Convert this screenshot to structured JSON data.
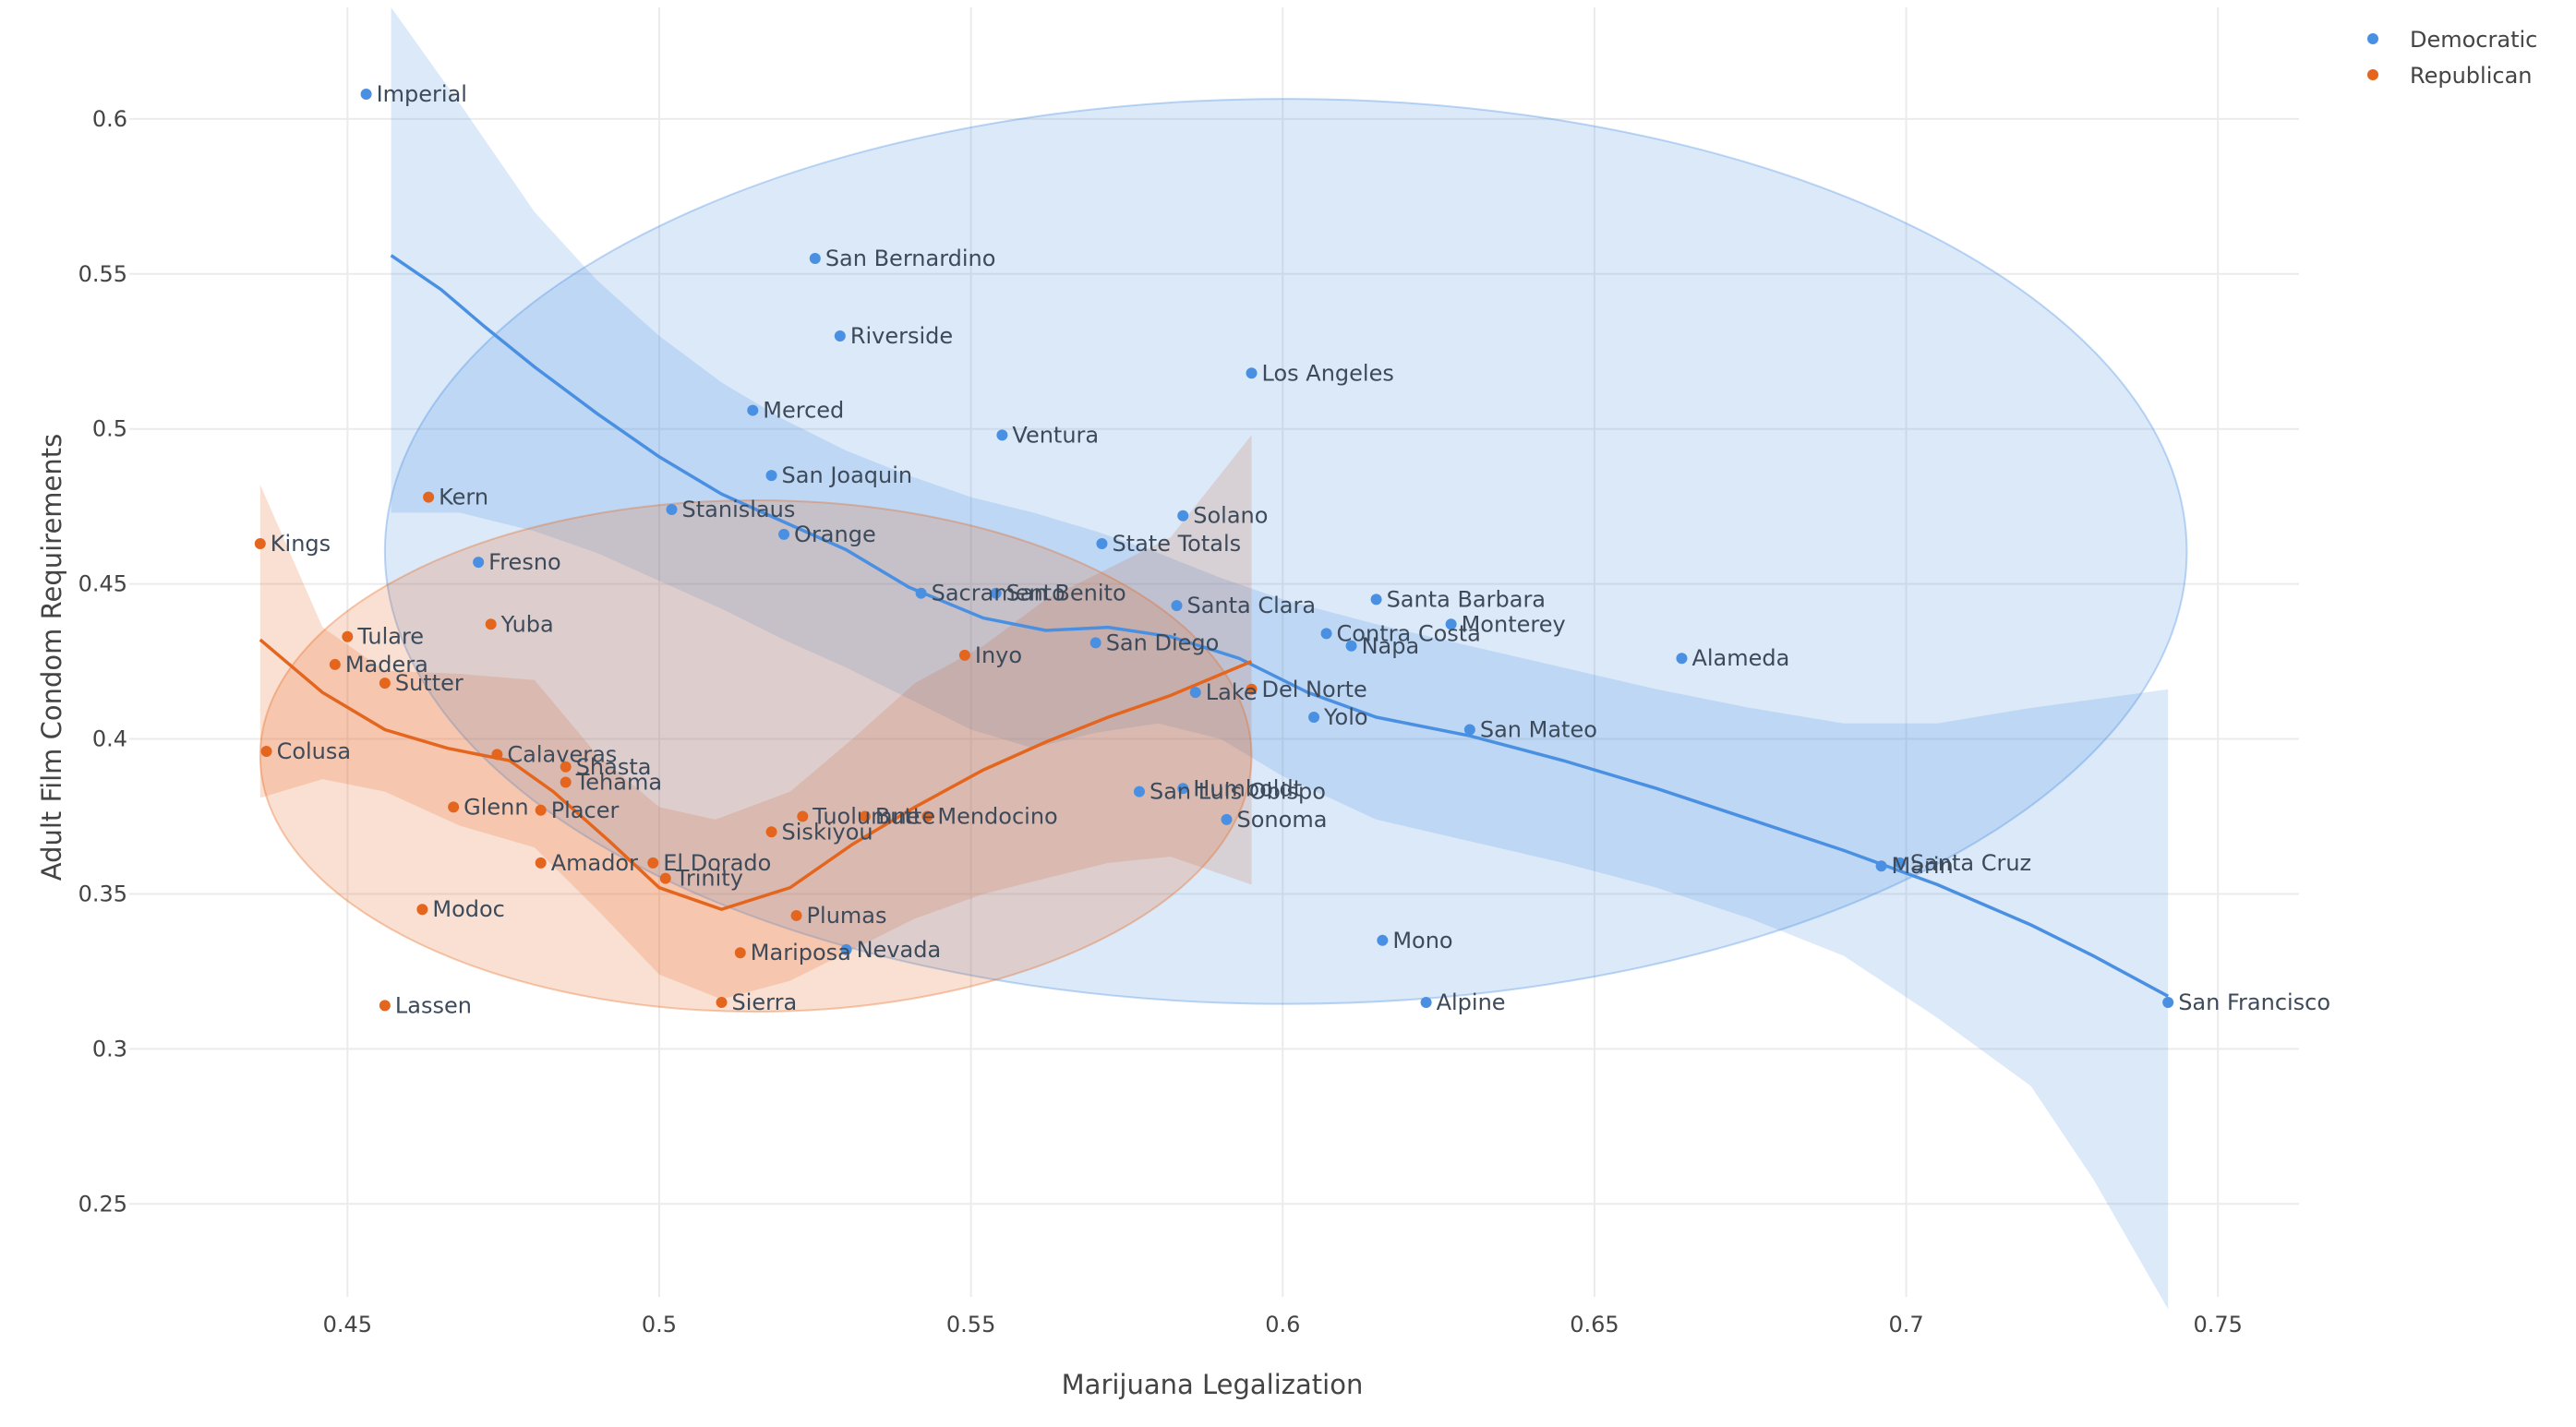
{
  "chart_data": {
    "type": "scatter",
    "title": "",
    "xlabel": "Marijuana Legalization",
    "ylabel": "Adult Film Condom Requirements",
    "xlim": [
      0.415,
      0.763
    ],
    "ylim": [
      0.22,
      0.636
    ],
    "x_ticks": [
      0.45,
      0.5,
      0.55,
      0.6,
      0.65,
      0.7,
      0.75
    ],
    "x_tick_labels": [
      "0.45",
      "0.5",
      "0.55",
      "0.6",
      "0.65",
      "0.7",
      "0.75"
    ],
    "y_ticks": [
      0.25,
      0.3,
      0.35,
      0.4,
      0.45,
      0.5,
      0.55,
      0.6
    ],
    "y_tick_labels": [
      "0.25",
      "0.3",
      "0.35",
      "0.4",
      "0.45",
      "0.5",
      "0.55",
      "0.6"
    ],
    "grid": true,
    "legend_position": "top-right",
    "series": [
      {
        "name": "Democratic",
        "color": "#4a90e2",
        "points": [
          {
            "label": "Imperial",
            "x": 0.453,
            "y": 0.608
          },
          {
            "label": "San Bernardino",
            "x": 0.525,
            "y": 0.555
          },
          {
            "label": "Riverside",
            "x": 0.529,
            "y": 0.53
          },
          {
            "label": "Los Angeles",
            "x": 0.595,
            "y": 0.518
          },
          {
            "label": "Merced",
            "x": 0.515,
            "y": 0.506
          },
          {
            "label": "Ventura",
            "x": 0.555,
            "y": 0.498
          },
          {
            "label": "San Joaquin",
            "x": 0.518,
            "y": 0.485
          },
          {
            "label": "Solano",
            "x": 0.584,
            "y": 0.472
          },
          {
            "label": "Stanislaus",
            "x": 0.502,
            "y": 0.474
          },
          {
            "label": "Orange",
            "x": 0.52,
            "y": 0.466
          },
          {
            "label": "State Totals",
            "x": 0.571,
            "y": 0.463
          },
          {
            "label": "Fresno",
            "x": 0.471,
            "y": 0.457
          },
          {
            "label": "Sacramento",
            "x": 0.542,
            "y": 0.447
          },
          {
            "label": "San Benito",
            "x": 0.554,
            "y": 0.447
          },
          {
            "label": "Santa Clara",
            "x": 0.583,
            "y": 0.443
          },
          {
            "label": "Santa Barbara",
            "x": 0.615,
            "y": 0.445
          },
          {
            "label": "Monterey",
            "x": 0.627,
            "y": 0.437
          },
          {
            "label": "Contra Costa",
            "x": 0.607,
            "y": 0.434
          },
          {
            "label": "Napa",
            "x": 0.611,
            "y": 0.43
          },
          {
            "label": "San Diego",
            "x": 0.57,
            "y": 0.431
          },
          {
            "label": "Alameda",
            "x": 0.664,
            "y": 0.426
          },
          {
            "label": "Lake",
            "x": 0.586,
            "y": 0.415
          },
          {
            "label": "Yolo",
            "x": 0.605,
            "y": 0.407
          },
          {
            "label": "San Mateo",
            "x": 0.63,
            "y": 0.403
          },
          {
            "label": "San Luis Obispo",
            "x": 0.577,
            "y": 0.383
          },
          {
            "label": "Humboldt",
            "x": 0.584,
            "y": 0.384
          },
          {
            "label": "Sonoma",
            "x": 0.591,
            "y": 0.374
          },
          {
            "label": "Marin",
            "x": 0.696,
            "y": 0.359
          },
          {
            "label": "Santa Cruz",
            "x": 0.699,
            "y": 0.36
          },
          {
            "label": "Mono",
            "x": 0.616,
            "y": 0.335
          },
          {
            "label": "Alpine",
            "x": 0.623,
            "y": 0.315
          },
          {
            "label": "Nevada",
            "x": 0.53,
            "y": 0.332
          },
          {
            "label": "San Francisco",
            "x": 0.742,
            "y": 0.315
          }
        ],
        "smooth": [
          [
            0.457,
            0.556
          ],
          [
            0.465,
            0.545
          ],
          [
            0.472,
            0.533
          ],
          [
            0.48,
            0.52
          ],
          [
            0.49,
            0.505
          ],
          [
            0.5,
            0.491
          ],
          [
            0.51,
            0.479
          ],
          [
            0.52,
            0.47
          ],
          [
            0.53,
            0.461
          ],
          [
            0.54,
            0.449
          ],
          [
            0.552,
            0.439
          ],
          [
            0.562,
            0.435
          ],
          [
            0.572,
            0.436
          ],
          [
            0.582,
            0.433
          ],
          [
            0.593,
            0.426
          ],
          [
            0.604,
            0.415
          ],
          [
            0.615,
            0.407
          ],
          [
            0.63,
            0.401
          ],
          [
            0.645,
            0.393
          ],
          [
            0.66,
            0.384
          ],
          [
            0.675,
            0.374
          ],
          [
            0.69,
            0.364
          ],
          [
            0.705,
            0.353
          ],
          [
            0.72,
            0.34
          ],
          [
            0.73,
            0.33
          ],
          [
            0.742,
            0.317
          ]
        ],
        "band_upper": [
          [
            0.457,
            0.636
          ],
          [
            0.468,
            0.605
          ],
          [
            0.48,
            0.57
          ],
          [
            0.49,
            0.548
          ],
          [
            0.5,
            0.53
          ],
          [
            0.51,
            0.515
          ],
          [
            0.52,
            0.503
          ],
          [
            0.53,
            0.493
          ],
          [
            0.54,
            0.485
          ],
          [
            0.55,
            0.478
          ],
          [
            0.56,
            0.473
          ],
          [
            0.57,
            0.467
          ],
          [
            0.58,
            0.46
          ],
          [
            0.59,
            0.452
          ],
          [
            0.6,
            0.445
          ],
          [
            0.615,
            0.437
          ],
          [
            0.63,
            0.43
          ],
          [
            0.645,
            0.423
          ],
          [
            0.66,
            0.416
          ],
          [
            0.675,
            0.41
          ],
          [
            0.69,
            0.405
          ],
          [
            0.705,
            0.405
          ],
          [
            0.72,
            0.41
          ],
          [
            0.742,
            0.416
          ]
        ],
        "band_lower": [
          [
            0.457,
            0.473
          ],
          [
            0.468,
            0.473
          ],
          [
            0.48,
            0.467
          ],
          [
            0.49,
            0.46
          ],
          [
            0.5,
            0.451
          ],
          [
            0.51,
            0.442
          ],
          [
            0.52,
            0.432
          ],
          [
            0.53,
            0.423
          ],
          [
            0.54,
            0.413
          ],
          [
            0.55,
            0.403
          ],
          [
            0.56,
            0.397
          ],
          [
            0.57,
            0.402
          ],
          [
            0.58,
            0.405
          ],
          [
            0.59,
            0.4
          ],
          [
            0.6,
            0.388
          ],
          [
            0.615,
            0.374
          ],
          [
            0.63,
            0.367
          ],
          [
            0.645,
            0.36
          ],
          [
            0.66,
            0.352
          ],
          [
            0.675,
            0.342
          ],
          [
            0.69,
            0.33
          ],
          [
            0.705,
            0.31
          ],
          [
            0.72,
            0.288
          ],
          [
            0.73,
            0.258
          ],
          [
            0.742,
            0.216
          ]
        ],
        "ellipse": {
          "cx": 0.6005,
          "cy": 0.4605,
          "rx": 0.1445,
          "ry": 0.146
        }
      },
      {
        "name": "Republican",
        "color": "#e4661e",
        "points": [
          {
            "label": "Kern",
            "x": 0.463,
            "y": 0.478
          },
          {
            "label": "Kings",
            "x": 0.436,
            "y": 0.463
          },
          {
            "label": "Yuba",
            "x": 0.473,
            "y": 0.437
          },
          {
            "label": "Tulare",
            "x": 0.45,
            "y": 0.433
          },
          {
            "label": "Inyo",
            "x": 0.549,
            "y": 0.427
          },
          {
            "label": "Madera",
            "x": 0.448,
            "y": 0.424
          },
          {
            "label": "Sutter",
            "x": 0.456,
            "y": 0.418
          },
          {
            "label": "Del Norte",
            "x": 0.595,
            "y": 0.416
          },
          {
            "label": "Colusa",
            "x": 0.437,
            "y": 0.396
          },
          {
            "label": "Calaveras",
            "x": 0.474,
            "y": 0.395
          },
          {
            "label": "Shasta",
            "x": 0.485,
            "y": 0.391
          },
          {
            "label": "Tehama",
            "x": 0.485,
            "y": 0.386
          },
          {
            "label": "Glenn",
            "x": 0.467,
            "y": 0.378
          },
          {
            "label": "Placer",
            "x": 0.481,
            "y": 0.377
          },
          {
            "label": "Tuolumne",
            "x": 0.523,
            "y": 0.375
          },
          {
            "label": "Butte",
            "x": 0.533,
            "y": 0.375
          },
          {
            "label": "Mendocino",
            "x": 0.543,
            "y": 0.375
          },
          {
            "label": "Siskiyou",
            "x": 0.518,
            "y": 0.37
          },
          {
            "label": "Amador",
            "x": 0.481,
            "y": 0.36
          },
          {
            "label": "El Dorado",
            "x": 0.499,
            "y": 0.36
          },
          {
            "label": "Trinity",
            "x": 0.501,
            "y": 0.355
          },
          {
            "label": "Modoc",
            "x": 0.462,
            "y": 0.345
          },
          {
            "label": "Plumas",
            "x": 0.522,
            "y": 0.343
          },
          {
            "label": "Mariposa",
            "x": 0.513,
            "y": 0.331
          },
          {
            "label": "Sierra",
            "x": 0.51,
            "y": 0.315
          },
          {
            "label": "Lassen",
            "x": 0.456,
            "y": 0.314
          }
        ],
        "smooth": [
          [
            0.436,
            0.432
          ],
          [
            0.446,
            0.415
          ],
          [
            0.456,
            0.403
          ],
          [
            0.466,
            0.397
          ],
          [
            0.476,
            0.393
          ],
          [
            0.483,
            0.383
          ],
          [
            0.492,
            0.367
          ],
          [
            0.5,
            0.352
          ],
          [
            0.51,
            0.345
          ],
          [
            0.521,
            0.352
          ],
          [
            0.531,
            0.366
          ],
          [
            0.541,
            0.378
          ],
          [
            0.552,
            0.39
          ],
          [
            0.562,
            0.399
          ],
          [
            0.572,
            0.407
          ],
          [
            0.582,
            0.414
          ],
          [
            0.595,
            0.425
          ]
        ],
        "band_upper": [
          [
            0.436,
            0.482
          ],
          [
            0.446,
            0.436
          ],
          [
            0.456,
            0.422
          ],
          [
            0.468,
            0.421
          ],
          [
            0.48,
            0.419
          ],
          [
            0.49,
            0.395
          ],
          [
            0.5,
            0.378
          ],
          [
            0.509,
            0.374
          ],
          [
            0.521,
            0.383
          ],
          [
            0.531,
            0.4
          ],
          [
            0.541,
            0.418
          ],
          [
            0.552,
            0.43
          ],
          [
            0.562,
            0.445
          ],
          [
            0.572,
            0.455
          ],
          [
            0.582,
            0.465
          ],
          [
            0.595,
            0.498
          ]
        ],
        "band_lower": [
          [
            0.436,
            0.381
          ],
          [
            0.446,
            0.387
          ],
          [
            0.456,
            0.383
          ],
          [
            0.468,
            0.372
          ],
          [
            0.48,
            0.365
          ],
          [
            0.49,
            0.345
          ],
          [
            0.5,
            0.324
          ],
          [
            0.51,
            0.316
          ],
          [
            0.521,
            0.322
          ],
          [
            0.531,
            0.332
          ],
          [
            0.541,
            0.342
          ],
          [
            0.552,
            0.35
          ],
          [
            0.562,
            0.355
          ],
          [
            0.572,
            0.36
          ],
          [
            0.582,
            0.362
          ],
          [
            0.595,
            0.353
          ]
        ],
        "ellipse": {
          "cx": 0.5155,
          "cy": 0.3945,
          "rx": 0.0795,
          "ry": 0.0825
        }
      }
    ]
  },
  "legend": {
    "items": [
      {
        "name": "Democratic",
        "color": "#4a90e2"
      },
      {
        "name": "Republican",
        "color": "#e4661e"
      }
    ]
  }
}
